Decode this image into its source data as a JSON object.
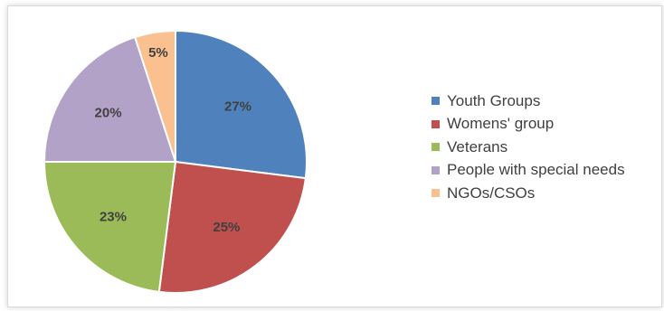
{
  "chart_data": {
    "type": "pie",
    "categories": [
      "Youth Groups",
      "Womens' group",
      "Veterans",
      "People with special needs",
      "NGOs/CSOs"
    ],
    "values": [
      27,
      25,
      23,
      20,
      5
    ],
    "data_labels": [
      "27%",
      "25%",
      "23%",
      "20%",
      "5%"
    ],
    "colors": [
      "#4f81bd",
      "#c0504d",
      "#9bbb59",
      "#b3a2c7",
      "#fac090"
    ],
    "start_angle_deg": 0,
    "direction": "clockwise",
    "legend_placement": "right",
    "title": ""
  }
}
